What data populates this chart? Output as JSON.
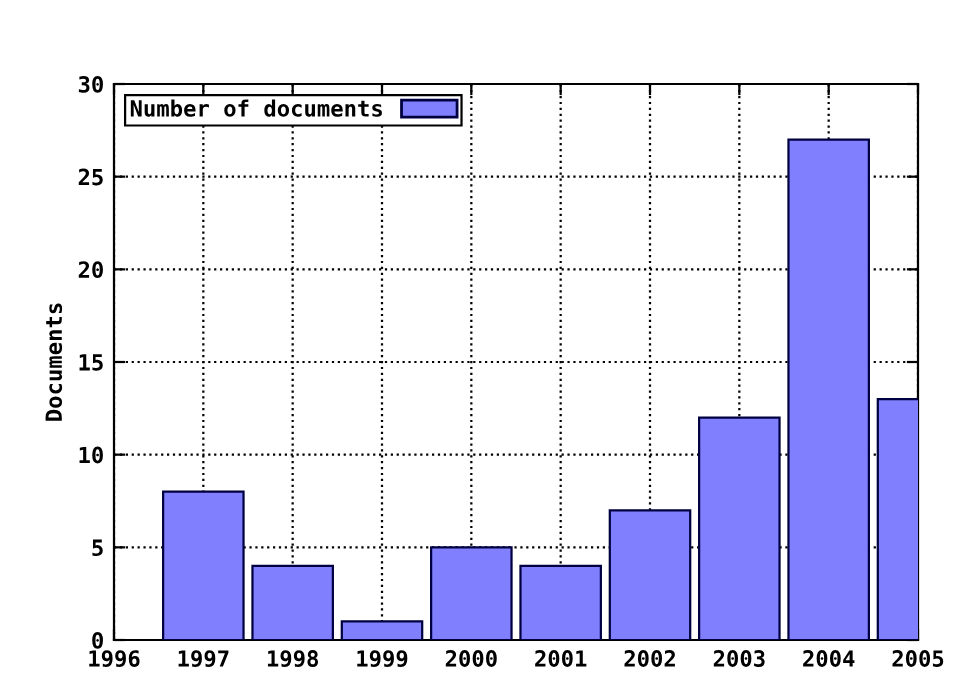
{
  "chart_data": {
    "type": "bar",
    "ylabel": "Documents",
    "x": [
      1997,
      1998,
      1999,
      2000,
      2001,
      2002,
      2003,
      2004,
      2005
    ],
    "series": [
      {
        "name": "Number of documents",
        "color": "#8080ff",
        "values": [
          8,
          4,
          1,
          5,
          4,
          7,
          12,
          27,
          13
        ]
      }
    ],
    "xlim": [
      1996,
      2005
    ],
    "xticks": [
      1996,
      1997,
      1998,
      1999,
      2000,
      2001,
      2002,
      2003,
      2004,
      2005
    ],
    "ylim": [
      0,
      30
    ],
    "yticks": [
      0,
      5,
      10,
      15,
      20,
      25,
      30
    ],
    "grid": true,
    "legend": "top left"
  }
}
